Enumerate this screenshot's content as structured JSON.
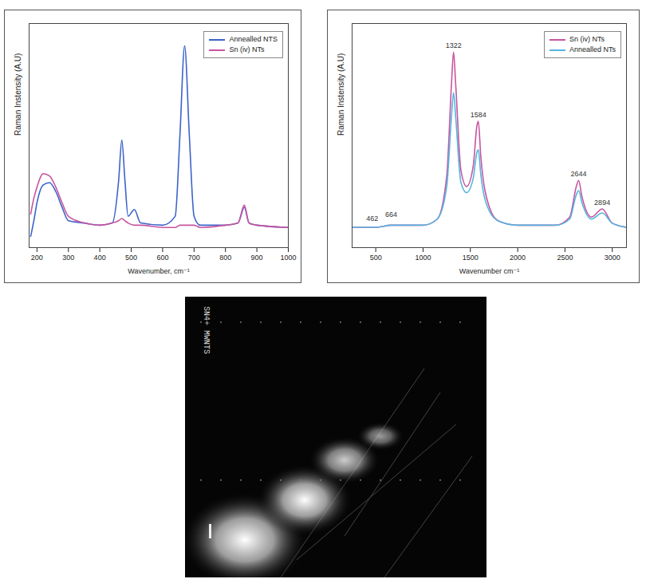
{
  "chart_data": [
    {
      "type": "line",
      "x_label": "Wavenumber, cm⁻¹",
      "y_label": "Raman Instensity (A.U)",
      "xlim": [
        175,
        1000
      ],
      "xticks": [
        200,
        300,
        400,
        500,
        600,
        700,
        800,
        900,
        1000
      ],
      "ylim": [
        0,
        100
      ],
      "tick_labels": "x",
      "legend": "top-right",
      "x": [
        180,
        190,
        200,
        220,
        240,
        260,
        280,
        300,
        350,
        400,
        440,
        460,
        470,
        480,
        490,
        510,
        530,
        600,
        640,
        655,
        670,
        685,
        700,
        720,
        800,
        840,
        860,
        875,
        900,
        1000
      ],
      "series": [
        {
          "name": "Annealled NTS",
          "color": "#3c63c9",
          "values": [
            5,
            12,
            20,
            28,
            29,
            25,
            18,
            12,
            11,
            10,
            11,
            30,
            48,
            30,
            14,
            17,
            11,
            10,
            14,
            50,
            90,
            50,
            14,
            10,
            10,
            11,
            18,
            11,
            10,
            9
          ]
        },
        {
          "name": "Sn (iv) NTs",
          "color": "#c8559f",
          "values": [
            15,
            22,
            27,
            33,
            32,
            27,
            20,
            14,
            11,
            10,
            11,
            12,
            13,
            12,
            11,
            10,
            10,
            9,
            9,
            10,
            10,
            10,
            10,
            9,
            10,
            11,
            19,
            11,
            10,
            9
          ]
        }
      ]
    },
    {
      "type": "line",
      "x_label": "Wavenumber cm⁻¹",
      "y_label": "Raman Instensity (A.U)",
      "xlim": [
        250,
        3150
      ],
      "xticks": [
        500,
        1000,
        1500,
        2000,
        2500,
        3000
      ],
      "ylim": [
        0,
        110
      ],
      "tick_labels": "x",
      "legend": "top-right",
      "x": [
        250,
        500,
        664,
        1000,
        1150,
        1250,
        1300,
        1322,
        1345,
        1400,
        1460,
        1530,
        1570,
        1584,
        1610,
        1700,
        1800,
        2000,
        2400,
        2550,
        2620,
        2644,
        2680,
        2780,
        2894,
        3000,
        3150
      ],
      "series": [
        {
          "name": "Sn (iv) NTs",
          "color": "#c8559f",
          "values": [
            10,
            10,
            11,
            11,
            14,
            35,
            80,
            96,
            80,
            38,
            30,
            40,
            60,
            62,
            45,
            20,
            13,
            11,
            11,
            15,
            30,
            33,
            25,
            15,
            19,
            12,
            10
          ]
        },
        {
          "name": "Annealled NTs",
          "color": "#55b4e0",
          "values": [
            10,
            10,
            11,
            11,
            14,
            30,
            64,
            76,
            64,
            32,
            27,
            34,
            47,
            48,
            36,
            18,
            13,
            11,
            11,
            14,
            26,
            28,
            22,
            14,
            17,
            12,
            10
          ]
        }
      ],
      "annotations": [
        {
          "x": 462,
          "y": 11
        },
        {
          "x": 664,
          "y": 13
        },
        {
          "x": 1322,
          "y": 96
        },
        {
          "x": 1584,
          "y": 62
        },
        {
          "x": 2644,
          "y": 33
        },
        {
          "x": 2894,
          "y": 19
        }
      ]
    }
  ],
  "image": {
    "label": "SN4+ MWNTS"
  }
}
